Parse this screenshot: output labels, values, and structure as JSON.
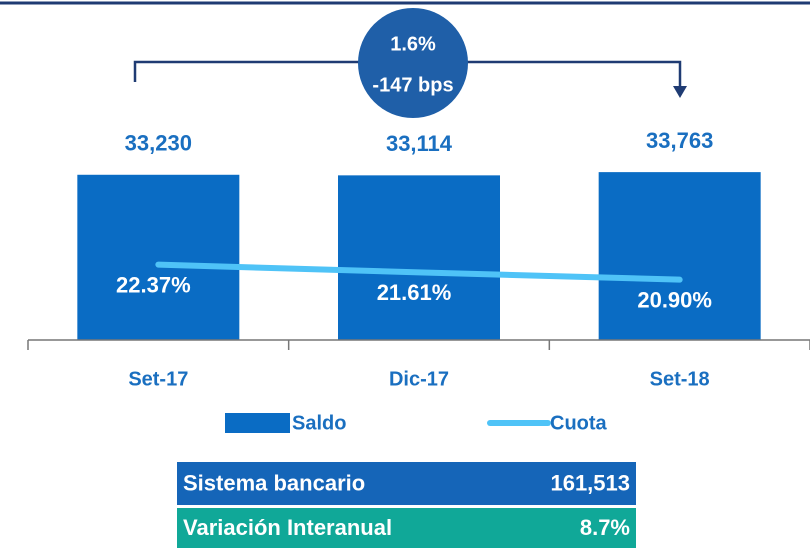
{
  "chart_data": {
    "type": "bar",
    "categories": [
      "Set-17",
      "Dic-17",
      "Set-18"
    ],
    "series": [
      {
        "name": "Saldo",
        "type": "bar",
        "color": "#0a6cc4",
        "values": [
          33230,
          33114,
          33763
        ],
        "value_labels": [
          "33,230",
          "33,114",
          "33,763"
        ]
      },
      {
        "name": "Cuota",
        "type": "line",
        "axis": "y2",
        "color": "#4fc3f7",
        "values": [
          22.37,
          21.61,
          20.9
        ],
        "value_labels": [
          "22.37%",
          "21.61%",
          "20.90%"
        ]
      }
    ],
    "ylim": [
      0,
      36000
    ],
    "y2lim": [
      15,
      32.5
    ],
    "annotations": [
      "1.6%",
      "-147 bps"
    ],
    "table": {
      "rows": [
        [
          "Sistema bancario",
          "161,513"
        ],
        [
          "Variación Interanual",
          "8.7%"
        ]
      ],
      "colors": [
        "#1565b8",
        "#10a898"
      ]
    },
    "legend": "bottom"
  }
}
